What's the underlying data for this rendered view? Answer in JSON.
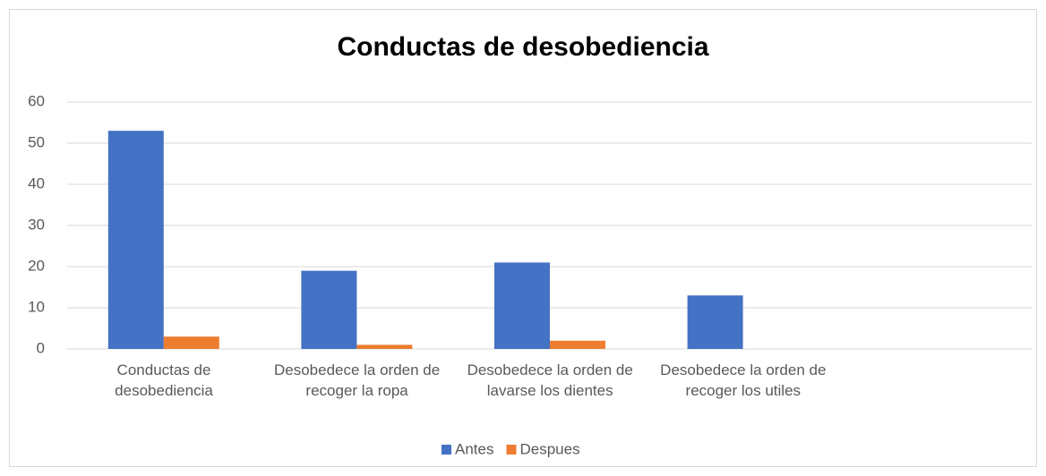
{
  "chart_data": {
    "type": "bar",
    "title": "Conductas de desobediencia",
    "categories": [
      "Conductas de desobediencia",
      "Desobedece la orden de recoger la ropa",
      "Desobedece la orden de lavarse los dientes",
      "Desobedece la orden de recoger los utiles",
      null
    ],
    "series": [
      {
        "name": "Antes",
        "color": "#4472c4",
        "values": [
          53,
          19,
          21,
          13,
          null
        ]
      },
      {
        "name": "Despues",
        "color": "#ed7d31",
        "values": [
          3,
          1,
          2,
          0,
          null
        ]
      }
    ],
    "ylim": [
      0,
      60
    ],
    "yticks": [
      0,
      10,
      20,
      30,
      40,
      50,
      60
    ],
    "grid": true,
    "legend": "bottom"
  }
}
